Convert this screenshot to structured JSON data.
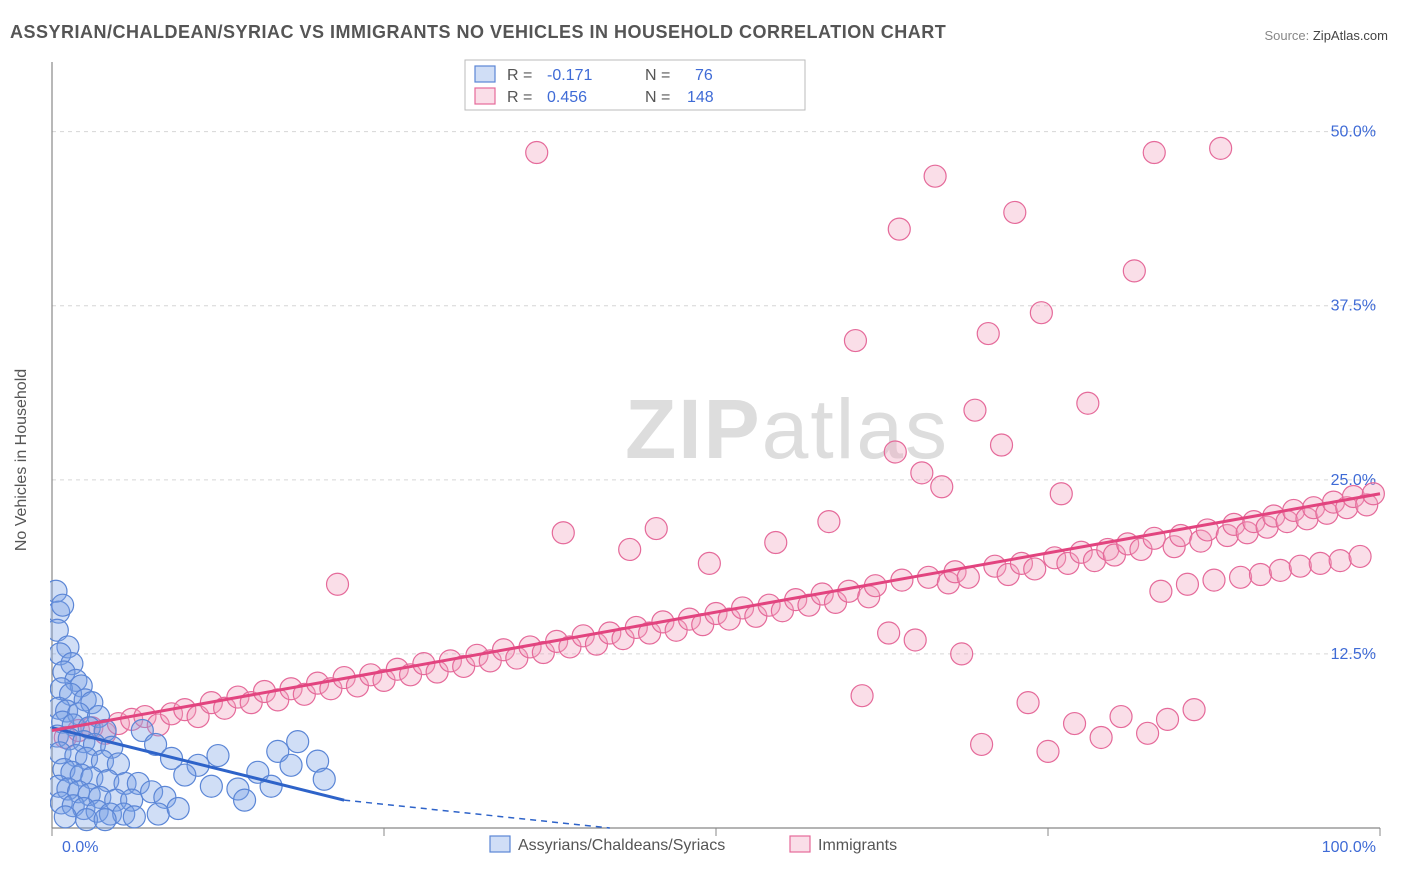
{
  "title": "ASSYRIAN/CHALDEAN/SYRIAC VS IMMIGRANTS NO VEHICLES IN HOUSEHOLD CORRELATION CHART",
  "source_label": "Source: ",
  "source_value": "ZipAtlas.com",
  "ylabel": "No Vehicles in Household",
  "watermark_a": "ZIP",
  "watermark_b": "atlas",
  "chart": {
    "type": "scatter",
    "xlim": [
      0,
      100
    ],
    "ylim": [
      0,
      55
    ],
    "xtick_labels": {
      "min": "0.0%",
      "max": "100.0%"
    },
    "xtick_positions": [
      0,
      25,
      50,
      75,
      100
    ],
    "ytick_labels": [
      "12.5%",
      "25.0%",
      "37.5%",
      "50.0%"
    ],
    "ytick_values": [
      12.5,
      25.0,
      37.5,
      50.0
    ],
    "grid_color": "#d6d6d6",
    "axis_color": "#888888",
    "background_color": "#ffffff",
    "marker_radius": 11,
    "marker_stroke_width": 1.2,
    "series": {
      "blue": {
        "label": "Assyrians/Chaldeans/Syriacs",
        "fill": "rgba(120,160,230,0.35)",
        "stroke": "#5b86d6",
        "R": "-0.171",
        "N": "76",
        "trend": {
          "x1": 0,
          "y1": 7.2,
          "x2": 22,
          "y2": 2.0,
          "dash_to": 42
        },
        "points": [
          [
            0.3,
            17.0
          ],
          [
            0.5,
            15.5
          ],
          [
            0.8,
            16.0
          ],
          [
            0.4,
            14.2
          ],
          [
            1.2,
            13.0
          ],
          [
            0.6,
            12.5
          ],
          [
            1.5,
            11.8
          ],
          [
            0.9,
            11.2
          ],
          [
            1.8,
            10.6
          ],
          [
            2.2,
            10.2
          ],
          [
            0.7,
            10.0
          ],
          [
            1.4,
            9.6
          ],
          [
            2.5,
            9.2
          ],
          [
            3.0,
            9.0
          ],
          [
            0.5,
            8.6
          ],
          [
            1.1,
            8.4
          ],
          [
            2.0,
            8.2
          ],
          [
            3.5,
            8.0
          ],
          [
            0.8,
            7.6
          ],
          [
            1.6,
            7.4
          ],
          [
            2.8,
            7.2
          ],
          [
            4.0,
            7.0
          ],
          [
            0.4,
            6.6
          ],
          [
            1.3,
            6.4
          ],
          [
            2.4,
            6.2
          ],
          [
            3.2,
            6.0
          ],
          [
            4.5,
            5.8
          ],
          [
            0.6,
            5.4
          ],
          [
            1.8,
            5.2
          ],
          [
            2.6,
            5.0
          ],
          [
            3.8,
            4.8
          ],
          [
            5.0,
            4.6
          ],
          [
            0.9,
            4.2
          ],
          [
            1.5,
            4.0
          ],
          [
            2.2,
            3.8
          ],
          [
            3.0,
            3.6
          ],
          [
            4.2,
            3.4
          ],
          [
            5.5,
            3.2
          ],
          [
            6.5,
            3.2
          ],
          [
            0.5,
            3.0
          ],
          [
            1.2,
            2.8
          ],
          [
            2.0,
            2.6
          ],
          [
            2.8,
            2.4
          ],
          [
            3.6,
            2.2
          ],
          [
            4.8,
            2.0
          ],
          [
            6.0,
            2.0
          ],
          [
            7.5,
            2.6
          ],
          [
            8.5,
            2.2
          ],
          [
            0.7,
            1.8
          ],
          [
            1.6,
            1.6
          ],
          [
            2.4,
            1.4
          ],
          [
            3.4,
            1.2
          ],
          [
            4.4,
            1.0
          ],
          [
            5.4,
            1.0
          ],
          [
            1.0,
            0.8
          ],
          [
            2.6,
            0.6
          ],
          [
            4.0,
            0.6
          ],
          [
            6.2,
            0.8
          ],
          [
            8.0,
            1.0
          ],
          [
            9.5,
            1.4
          ],
          [
            11.0,
            4.5
          ],
          [
            12.5,
            5.2
          ],
          [
            14.0,
            2.8
          ],
          [
            15.5,
            4.0
          ],
          [
            17.0,
            5.5
          ],
          [
            18.5,
            6.2
          ],
          [
            20.0,
            4.8
          ],
          [
            20.5,
            3.5
          ],
          [
            6.8,
            7.0
          ],
          [
            7.8,
            6.0
          ],
          [
            9.0,
            5.0
          ],
          [
            10.0,
            3.8
          ],
          [
            12.0,
            3.0
          ],
          [
            14.5,
            2.0
          ],
          [
            16.5,
            3.0
          ],
          [
            18.0,
            4.5
          ]
        ]
      },
      "pink": {
        "label": "Immigrants",
        "fill": "rgba(240,160,190,0.35)",
        "stroke": "#e56a9a",
        "R": "0.456",
        "N": "148",
        "trend": {
          "x1": 0,
          "y1": 7.0,
          "x2": 100,
          "y2": 24.0
        },
        "points": [
          [
            1,
            6.5
          ],
          [
            2,
            7.0
          ],
          [
            3,
            7.2
          ],
          [
            4,
            6.8
          ],
          [
            5,
            7.5
          ],
          [
            6,
            7.8
          ],
          [
            7,
            8.0
          ],
          [
            8,
            7.4
          ],
          [
            9,
            8.2
          ],
          [
            10,
            8.5
          ],
          [
            11,
            8.0
          ],
          [
            12,
            9.0
          ],
          [
            13,
            8.6
          ],
          [
            14,
            9.4
          ],
          [
            15,
            9.0
          ],
          [
            16,
            9.8
          ],
          [
            17,
            9.2
          ],
          [
            18,
            10.0
          ],
          [
            19,
            9.6
          ],
          [
            20,
            10.4
          ],
          [
            21,
            10.0
          ],
          [
            22,
            10.8
          ],
          [
            21.5,
            17.5
          ],
          [
            23,
            10.2
          ],
          [
            24,
            11.0
          ],
          [
            25,
            10.6
          ],
          [
            26,
            11.4
          ],
          [
            27,
            11.0
          ],
          [
            28,
            11.8
          ],
          [
            29,
            11.2
          ],
          [
            30,
            12.0
          ],
          [
            31,
            11.6
          ],
          [
            32,
            12.4
          ],
          [
            33,
            12.0
          ],
          [
            34,
            12.8
          ],
          [
            35,
            12.2
          ],
          [
            36,
            13.0
          ],
          [
            36.5,
            48.5
          ],
          [
            37,
            12.6
          ],
          [
            38,
            13.4
          ],
          [
            38.5,
            21.2
          ],
          [
            39,
            13.0
          ],
          [
            40,
            13.8
          ],
          [
            41,
            13.2
          ],
          [
            42,
            14.0
          ],
          [
            43,
            13.6
          ],
          [
            43.5,
            20.0
          ],
          [
            44,
            14.4
          ],
          [
            45,
            14.0
          ],
          [
            45.5,
            21.5
          ],
          [
            46,
            14.8
          ],
          [
            47,
            14.2
          ],
          [
            48,
            15.0
          ],
          [
            49,
            14.6
          ],
          [
            49.5,
            19.0
          ],
          [
            50,
            15.4
          ],
          [
            51,
            15.0
          ],
          [
            52,
            15.8
          ],
          [
            53,
            15.2
          ],
          [
            54,
            16.0
          ],
          [
            54.5,
            20.5
          ],
          [
            55,
            15.6
          ],
          [
            56,
            16.4
          ],
          [
            57,
            16.0
          ],
          [
            58,
            16.8
          ],
          [
            58.5,
            22.0
          ],
          [
            59,
            16.2
          ],
          [
            60,
            17.0
          ],
          [
            60.5,
            35.0
          ],
          [
            61,
            9.5
          ],
          [
            61.5,
            16.6
          ],
          [
            62,
            17.4
          ],
          [
            63,
            14.0
          ],
          [
            63.5,
            27.0
          ],
          [
            63.8,
            43.0
          ],
          [
            64,
            17.8
          ],
          [
            65,
            13.5
          ],
          [
            65.5,
            25.5
          ],
          [
            66,
            18.0
          ],
          [
            66.5,
            46.8
          ],
          [
            67,
            24.5
          ],
          [
            67.5,
            17.6
          ],
          [
            68,
            18.4
          ],
          [
            68.5,
            12.5
          ],
          [
            69,
            18.0
          ],
          [
            69.5,
            30.0
          ],
          [
            70,
            6.0
          ],
          [
            70.5,
            35.5
          ],
          [
            71,
            18.8
          ],
          [
            71.5,
            27.5
          ],
          [
            72,
            18.2
          ],
          [
            72.5,
            44.2
          ],
          [
            73,
            19.0
          ],
          [
            73.5,
            9.0
          ],
          [
            74,
            18.6
          ],
          [
            74.5,
            37.0
          ],
          [
            75,
            5.5
          ],
          [
            75.5,
            19.4
          ],
          [
            76,
            24.0
          ],
          [
            76.5,
            19.0
          ],
          [
            77,
            7.5
          ],
          [
            77.5,
            19.8
          ],
          [
            78,
            30.5
          ],
          [
            78.5,
            19.2
          ],
          [
            79,
            6.5
          ],
          [
            79.5,
            20.0
          ],
          [
            80,
            19.6
          ],
          [
            80.5,
            8.0
          ],
          [
            81,
            20.4
          ],
          [
            81.5,
            40.0
          ],
          [
            82,
            20.0
          ],
          [
            82.5,
            6.8
          ],
          [
            83,
            20.8
          ],
          [
            83.5,
            17.0
          ],
          [
            84,
            7.8
          ],
          [
            84.5,
            20.2
          ],
          [
            85,
            21.0
          ],
          [
            85.5,
            17.5
          ],
          [
            86,
            8.5
          ],
          [
            86.5,
            20.6
          ],
          [
            87,
            21.4
          ],
          [
            87.5,
            17.8
          ],
          [
            88,
            48.8
          ],
          [
            88.5,
            21.0
          ],
          [
            89,
            21.8
          ],
          [
            89.5,
            18.0
          ],
          [
            90,
            21.2
          ],
          [
            90.5,
            22.0
          ],
          [
            91,
            18.2
          ],
          [
            91.5,
            21.6
          ],
          [
            92,
            22.4
          ],
          [
            92.5,
            18.5
          ],
          [
            93,
            22.0
          ],
          [
            93.5,
            22.8
          ],
          [
            94,
            18.8
          ],
          [
            94.5,
            22.2
          ],
          [
            95,
            23.0
          ],
          [
            95.5,
            19.0
          ],
          [
            96,
            22.6
          ],
          [
            96.5,
            23.4
          ],
          [
            97,
            19.2
          ],
          [
            97.5,
            23.0
          ],
          [
            98,
            23.8
          ],
          [
            98.5,
            19.5
          ],
          [
            99,
            23.2
          ],
          [
            99.5,
            24.0
          ],
          [
            83,
            48.5
          ]
        ]
      }
    },
    "legend_box": {
      "R_label": "R =",
      "N_label": "N ="
    }
  }
}
